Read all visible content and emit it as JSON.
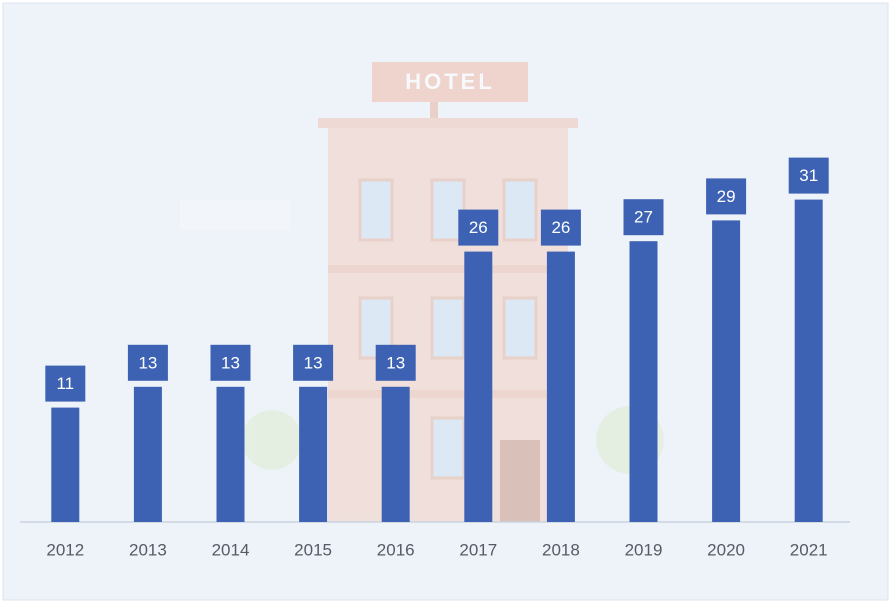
{
  "chart_data": {
    "type": "bar",
    "background_sign": "HOTEL",
    "categories": [
      "2012",
      "2013",
      "2014",
      "2015",
      "2016",
      "2017",
      "2018",
      "2019",
      "2020",
      "2021"
    ],
    "values": [
      11,
      13,
      13,
      13,
      13,
      26,
      26,
      27,
      29,
      31
    ],
    "color": "#3d62b3",
    "ylim": [
      0,
      50
    ]
  }
}
